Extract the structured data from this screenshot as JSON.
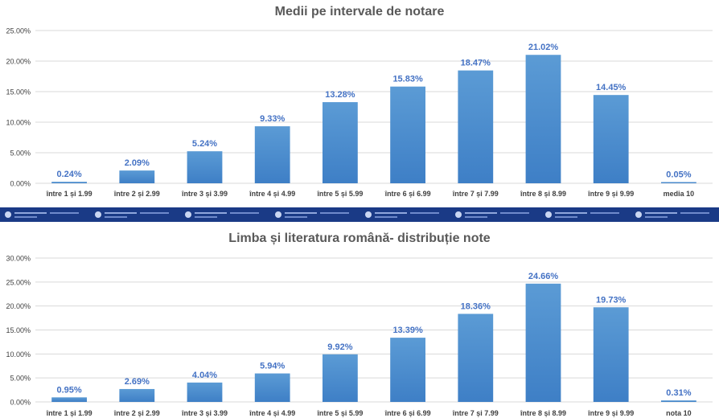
{
  "colors": {
    "bar": "#5b9bd5",
    "bar_dark": "#3e7fc6",
    "label": "#4472c4",
    "grid": "#d9d9d9",
    "axis_text": "#404040",
    "title": "#595959",
    "banner": "#1a3a86"
  },
  "chart_data": [
    {
      "type": "bar",
      "title": "Medii pe intervale de notare",
      "categories": [
        "între 1 și 1.99",
        "între 2 și 2.99",
        "între 3 și 3.99",
        "între 4 și 4.99",
        "între 5 și 5.99",
        "între 6 și 6.99",
        "între 7 și 7.99",
        "între 8 și 8.99",
        "între 9 și 9.99",
        "media 10"
      ],
      "values": [
        0.24,
        2.09,
        5.24,
        9.33,
        13.28,
        15.83,
        18.47,
        21.02,
        14.45,
        0.05
      ],
      "value_labels": [
        "0.24%",
        "2.09%",
        "5.24%",
        "9.33%",
        "13.28%",
        "15.83%",
        "18.47%",
        "21.02%",
        "14.45%",
        "0.05%"
      ],
      "yticks": [
        "0.00%",
        "5.00%",
        "10.00%",
        "15.00%",
        "20.00%",
        "25.00%"
      ],
      "ylim": [
        0,
        25
      ],
      "xlabel": "",
      "ylabel": "",
      "grid": true
    },
    {
      "type": "bar",
      "title": "Limba și literatura română- distribuție note",
      "categories": [
        "între 1 și 1.99",
        "între 2 și 2.99",
        "între 3 și 3.99",
        "între 4 și 4.99",
        "între 5 și 5.99",
        "între 6 și 6.99",
        "între 7 și 7.99",
        "între 8 și 8.99",
        "între 9 și 9.99",
        "nota 10"
      ],
      "values": [
        0.95,
        2.69,
        4.04,
        5.94,
        9.92,
        13.39,
        18.36,
        24.66,
        19.73,
        0.31
      ],
      "value_labels": [
        "0.95%",
        "2.69%",
        "4.04%",
        "5.94%",
        "9.92%",
        "13.39%",
        "18.36%",
        "24.66%",
        "19.73%",
        "0.31%"
      ],
      "yticks": [
        "0.00%",
        "5.00%",
        "10.00%",
        "15.00%",
        "20.00%",
        "25.00%",
        "30.00%"
      ],
      "ylim": [
        0,
        30
      ],
      "xlabel": "",
      "ylabel": "",
      "grid": true
    }
  ]
}
